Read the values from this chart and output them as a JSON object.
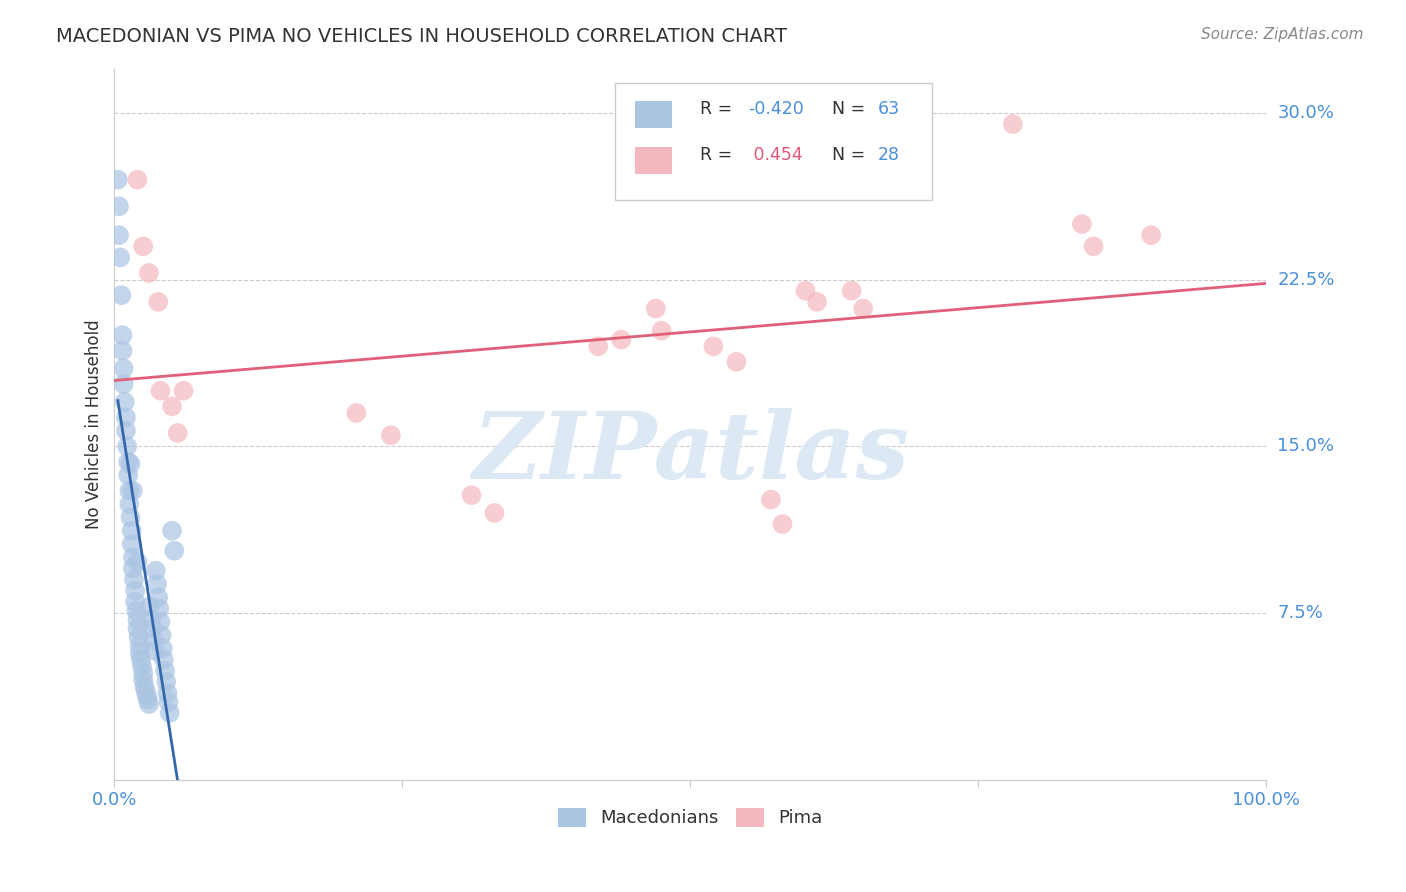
{
  "title": "MACEDONIAN VS PIMA NO VEHICLES IN HOUSEHOLD CORRELATION CHART",
  "source": "Source: ZipAtlas.com",
  "ylabel": "No Vehicles in Household",
  "xlim": [
    0.0,
    1.0
  ],
  "ylim": [
    0.0,
    0.32
  ],
  "xtick_positions": [
    0.0,
    0.25,
    0.5,
    0.75,
    1.0
  ],
  "xtick_labels": [
    "0.0%",
    "",
    "",
    "",
    "100.0%"
  ],
  "ytick_vals": [
    0.075,
    0.15,
    0.225,
    0.3
  ],
  "ytick_labels": [
    "7.5%",
    "15.0%",
    "22.5%",
    "30.0%"
  ],
  "macedonian_R": -0.42,
  "macedonian_N": 63,
  "pima_R": 0.454,
  "pima_N": 28,
  "macedonian_color": "#aac4e2",
  "macedonian_line_color": "#3366aa",
  "pima_color": "#f4b8c0",
  "pima_line_color": "#e0607a",
  "watermark_text": "ZIPatlas",
  "macedonian_x": [
    0.003,
    0.004,
    0.004,
    0.005,
    0.006,
    0.007,
    0.007,
    0.008,
    0.008,
    0.009,
    0.01,
    0.01,
    0.011,
    0.012,
    0.012,
    0.013,
    0.013,
    0.014,
    0.015,
    0.015,
    0.016,
    0.016,
    0.017,
    0.018,
    0.018,
    0.019,
    0.02,
    0.02,
    0.021,
    0.022,
    0.022,
    0.023,
    0.024,
    0.025,
    0.025,
    0.026,
    0.027,
    0.028,
    0.029,
    0.03,
    0.031,
    0.032,
    0.033,
    0.034,
    0.035,
    0.036,
    0.037,
    0.038,
    0.039,
    0.04,
    0.041,
    0.042,
    0.043,
    0.044,
    0.045,
    0.046,
    0.047,
    0.048,
    0.05,
    0.052,
    0.014,
    0.016,
    0.02
  ],
  "macedonian_y": [
    0.27,
    0.258,
    0.245,
    0.235,
    0.218,
    0.2,
    0.193,
    0.185,
    0.178,
    0.17,
    0.163,
    0.157,
    0.15,
    0.143,
    0.137,
    0.13,
    0.124,
    0.118,
    0.112,
    0.106,
    0.1,
    0.095,
    0.09,
    0.085,
    0.08,
    0.076,
    0.072,
    0.068,
    0.064,
    0.06,
    0.057,
    0.054,
    0.051,
    0.048,
    0.045,
    0.042,
    0.04,
    0.038,
    0.036,
    0.034,
    0.078,
    0.072,
    0.068,
    0.063,
    0.058,
    0.094,
    0.088,
    0.082,
    0.077,
    0.071,
    0.065,
    0.059,
    0.054,
    0.049,
    0.044,
    0.039,
    0.035,
    0.03,
    0.112,
    0.103,
    0.142,
    0.13,
    0.098
  ],
  "pima_x": [
    0.02,
    0.025,
    0.03,
    0.038,
    0.04,
    0.05,
    0.055,
    0.06,
    0.21,
    0.24,
    0.31,
    0.33,
    0.42,
    0.44,
    0.47,
    0.475,
    0.52,
    0.54,
    0.57,
    0.58,
    0.6,
    0.61,
    0.64,
    0.65,
    0.78,
    0.84,
    0.85,
    0.9
  ],
  "pima_y": [
    0.27,
    0.24,
    0.228,
    0.215,
    0.175,
    0.168,
    0.156,
    0.175,
    0.165,
    0.155,
    0.128,
    0.12,
    0.195,
    0.198,
    0.212,
    0.202,
    0.195,
    0.188,
    0.126,
    0.115,
    0.22,
    0.215,
    0.22,
    0.212,
    0.295,
    0.25,
    0.24,
    0.245
  ],
  "background_color": "#ffffff",
  "grid_color": "#cccccc",
  "title_color": "#333333",
  "axis_color": "#4a90d9",
  "legend_mac_r_color": "#4a90d9",
  "legend_pima_r_color": "#e05878",
  "legend_n_color": "#4a90d9"
}
